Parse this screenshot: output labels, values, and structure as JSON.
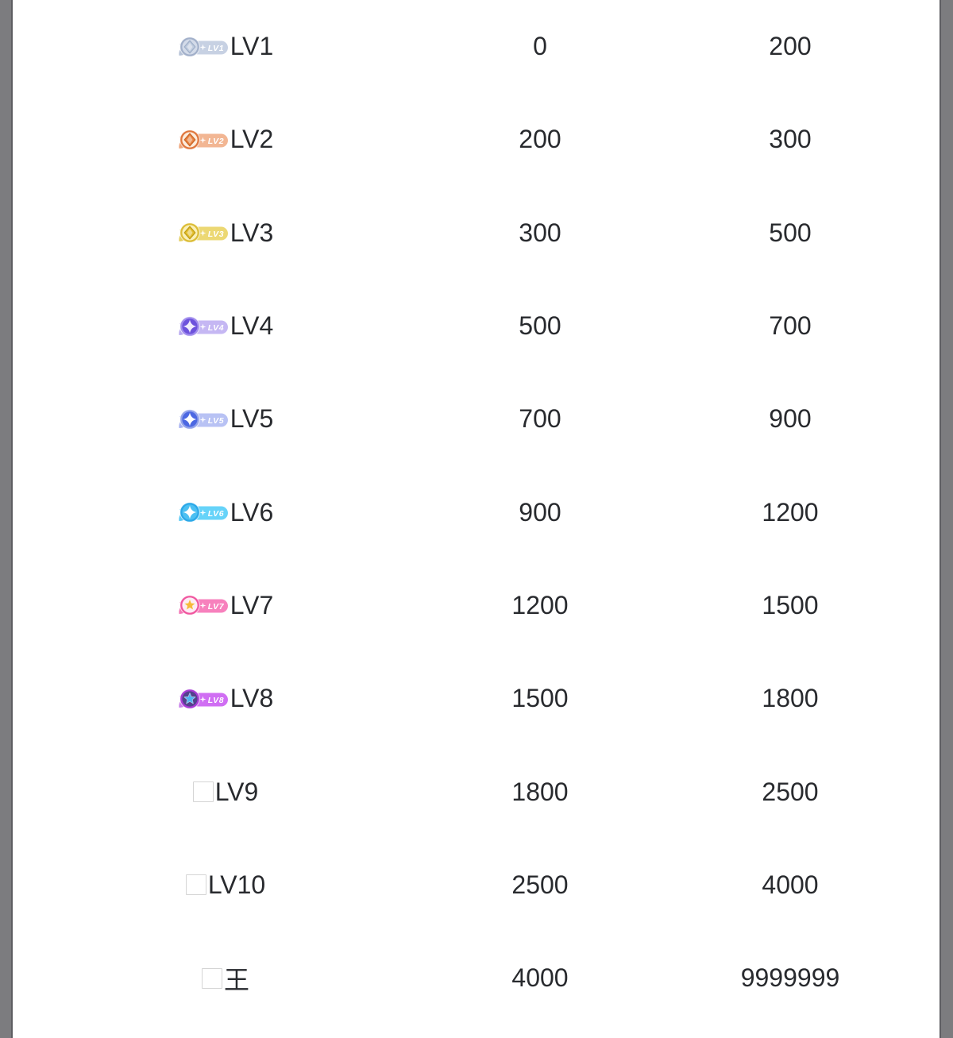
{
  "page": {
    "outer_bg": "#7c7c7f",
    "edge_line": "#5e5e62",
    "content_bg": "#ffffff",
    "text_color": "#282a2e",
    "placeholder_border": "#d5d5d5"
  },
  "levels_table": {
    "rows": [
      {
        "level": "LV1",
        "min": "0",
        "max": "200",
        "badge": {
          "label": "LV1",
          "wing": "#b6c2d7",
          "pill": "#c7d1e3",
          "ring": "#a2b0ca",
          "inner": "#d3dbe9",
          "gem": "diamond",
          "gem_color": "#bfcbde",
          "gem_stroke": "#9fafc9"
        }
      },
      {
        "level": "LV2",
        "min": "200",
        "max": "300",
        "badge": {
          "label": "LV2",
          "wing": "#efa67b",
          "pill": "#f2b693",
          "ring": "#e0773e",
          "inner": "#fcecdc",
          "gem": "diamond",
          "gem_color": "#e8823f",
          "gem_stroke": "#cb6527"
        }
      },
      {
        "level": "LV3",
        "min": "300",
        "max": "500",
        "badge": {
          "label": "LV3",
          "wing": "#e5cf62",
          "pill": "#ecd873",
          "ring": "#dcbd36",
          "inner": "#faf0b8",
          "gem": "diamond",
          "gem_color": "#e2bd2c",
          "gem_stroke": "#bf9c14"
        }
      },
      {
        "level": "LV4",
        "min": "500",
        "max": "700",
        "badge": {
          "label": "LV4",
          "wing": "#b7a7f0",
          "pill": "#c5b7f3",
          "ring": "#a18ded",
          "inner": "#6d52dc",
          "gem": "star4",
          "gem_color": "#f1edfd"
        }
      },
      {
        "level": "LV5",
        "min": "700",
        "max": "900",
        "badge": {
          "label": "LV5",
          "wing": "#a7b2f1",
          "pill": "#b8c2f4",
          "ring": "#93a3ea",
          "inner": "#4c68e2",
          "gem": "star4",
          "gem_color": "#ffffff"
        }
      },
      {
        "level": "LV6",
        "min": "900",
        "max": "1200",
        "badge": {
          "label": "LV6",
          "wing": "#58c9f5",
          "pill": "#66d3f9",
          "ring": "#2ba8e8",
          "inner": "#4cc0f2",
          "gem": "star4",
          "gem_color": "#ffffff"
        }
      },
      {
        "level": "LV7",
        "min": "1200",
        "max": "1500",
        "badge": {
          "label": "LV7",
          "wing": "#f478b7",
          "pill": "#f781bd",
          "ring": "#f0569f",
          "inner": "#fdecf5",
          "gem": "star5",
          "gem_color": "#f6b93a"
        }
      },
      {
        "level": "LV8",
        "min": "1500",
        "max": "1800",
        "badge": {
          "label": "LV8",
          "wing": "#c87fe9",
          "pill": "#d06ef3",
          "ring": "#a93ad6",
          "inner": "#53418d",
          "gem": "star5",
          "gem_color": "#4fb0f2"
        }
      },
      {
        "level": "LV9",
        "min": "1800",
        "max": "2500",
        "badge": null
      },
      {
        "level": "LV10",
        "min": "2500",
        "max": "4000",
        "badge": null
      },
      {
        "level": "王",
        "min": "4000",
        "max": "9999999",
        "badge": null
      }
    ]
  }
}
